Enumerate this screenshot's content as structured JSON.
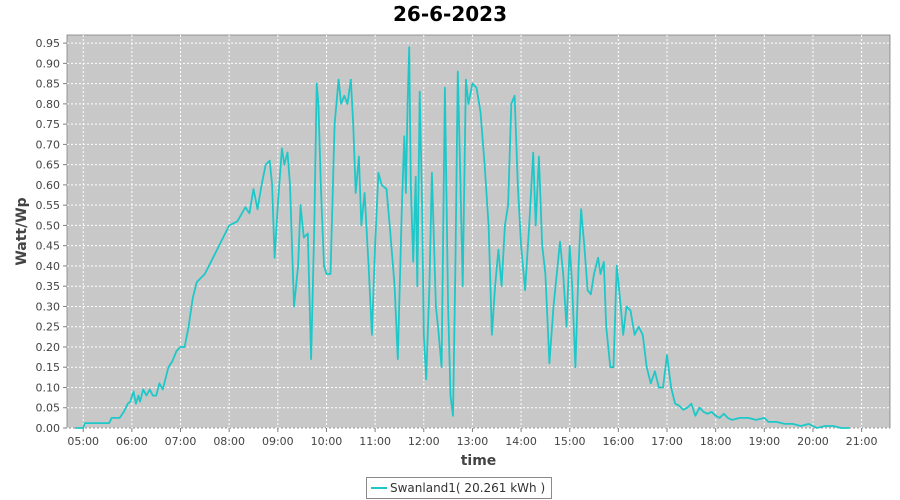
{
  "chart_data": {
    "type": "line",
    "title": "26-6-2023",
    "xlabel": "time",
    "ylabel": "Watt/Wp",
    "xlim": [
      "04:40",
      "21:35"
    ],
    "ylim": [
      0,
      0.97
    ],
    "grid": true,
    "legend_position": "bottom-center",
    "x_ticks": [
      "05:00",
      "06:00",
      "07:00",
      "08:00",
      "09:00",
      "10:00",
      "11:00",
      "12:00",
      "13:00",
      "14:00",
      "15:00",
      "16:00",
      "17:00",
      "18:00",
      "19:00",
      "20:00",
      "21:00"
    ],
    "y_ticks": [
      "0.00",
      "0.05",
      "0.10",
      "0.15",
      "0.20",
      "0.25",
      "0.30",
      "0.35",
      "0.40",
      "0.45",
      "0.50",
      "0.55",
      "0.60",
      "0.65",
      "0.70",
      "0.75",
      "0.80",
      "0.85",
      "0.90",
      "0.95"
    ],
    "series": [
      {
        "name": "Swanland1( 20.261 kWh )",
        "color": "#1ec8c8",
        "points": [
          [
            "04:50",
            0.0
          ],
          [
            "05:00",
            0.0
          ],
          [
            "05:02",
            0.012
          ],
          [
            "05:10",
            0.012
          ],
          [
            "05:20",
            0.012
          ],
          [
            "05:32",
            0.012
          ],
          [
            "05:35",
            0.025
          ],
          [
            "05:45",
            0.025
          ],
          [
            "05:50",
            0.04
          ],
          [
            "05:55",
            0.06
          ],
          [
            "05:58",
            0.065
          ],
          [
            "06:02",
            0.09
          ],
          [
            "06:05",
            0.06
          ],
          [
            "06:08",
            0.08
          ],
          [
            "06:10",
            0.065
          ],
          [
            "06:14",
            0.095
          ],
          [
            "06:18",
            0.08
          ],
          [
            "06:22",
            0.095
          ],
          [
            "06:26",
            0.08
          ],
          [
            "06:30",
            0.08
          ],
          [
            "06:34",
            0.11
          ],
          [
            "06:38",
            0.095
          ],
          [
            "06:40",
            0.11
          ],
          [
            "06:45",
            0.15
          ],
          [
            "06:50",
            0.165
          ],
          [
            "06:55",
            0.19
          ],
          [
            "07:00",
            0.2
          ],
          [
            "07:05",
            0.2
          ],
          [
            "07:10",
            0.25
          ],
          [
            "07:15",
            0.32
          ],
          [
            "07:20",
            0.36
          ],
          [
            "07:30",
            0.38
          ],
          [
            "07:40",
            0.42
          ],
          [
            "07:50",
            0.46
          ],
          [
            "08:00",
            0.5
          ],
          [
            "08:10",
            0.51
          ],
          [
            "08:20",
            0.545
          ],
          [
            "08:25",
            0.53
          ],
          [
            "08:30",
            0.59
          ],
          [
            "08:35",
            0.54
          ],
          [
            "08:40",
            0.6
          ],
          [
            "08:45",
            0.65
          ],
          [
            "08:50",
            0.66
          ],
          [
            "08:53",
            0.6
          ],
          [
            "08:56",
            0.42
          ],
          [
            "09:00",
            0.55
          ],
          [
            "09:05",
            0.69
          ],
          [
            "09:08",
            0.65
          ],
          [
            "09:12",
            0.68
          ],
          [
            "09:15",
            0.6
          ],
          [
            "09:20",
            0.3
          ],
          [
            "09:25",
            0.4
          ],
          [
            "09:28",
            0.55
          ],
          [
            "09:32",
            0.47
          ],
          [
            "09:37",
            0.48
          ],
          [
            "09:41",
            0.17
          ],
          [
            "09:45",
            0.5
          ],
          [
            "09:48",
            0.85
          ],
          [
            "09:50",
            0.8
          ],
          [
            "09:53",
            0.6
          ],
          [
            "09:57",
            0.4
          ],
          [
            "10:00",
            0.38
          ],
          [
            "10:05",
            0.38
          ],
          [
            "10:10",
            0.75
          ],
          [
            "10:15",
            0.86
          ],
          [
            "10:18",
            0.8
          ],
          [
            "10:22",
            0.82
          ],
          [
            "10:26",
            0.8
          ],
          [
            "10:30",
            0.86
          ],
          [
            "10:33",
            0.75
          ],
          [
            "10:36",
            0.58
          ],
          [
            "10:40",
            0.67
          ],
          [
            "10:43",
            0.5
          ],
          [
            "10:47",
            0.58
          ],
          [
            "10:52",
            0.4
          ],
          [
            "10:56",
            0.23
          ],
          [
            "11:00",
            0.45
          ],
          [
            "11:04",
            0.63
          ],
          [
            "11:08",
            0.6
          ],
          [
            "11:14",
            0.59
          ],
          [
            "11:18",
            0.5
          ],
          [
            "11:24",
            0.35
          ],
          [
            "11:28",
            0.17
          ],
          [
            "11:33",
            0.55
          ],
          [
            "11:36",
            0.72
          ],
          [
            "11:38",
            0.58
          ],
          [
            "11:40",
            0.8
          ],
          [
            "11:42",
            0.94
          ],
          [
            "11:44",
            0.6
          ],
          [
            "11:47",
            0.41
          ],
          [
            "11:50",
            0.62
          ],
          [
            "11:52",
            0.35
          ],
          [
            "11:55",
            0.83
          ],
          [
            "11:58",
            0.55
          ],
          [
            "12:00",
            0.23
          ],
          [
            "12:03",
            0.12
          ],
          [
            "12:07",
            0.35
          ],
          [
            "12:10",
            0.63
          ],
          [
            "12:15",
            0.3
          ],
          [
            "12:18",
            0.24
          ],
          [
            "12:22",
            0.15
          ],
          [
            "12:26",
            0.84
          ],
          [
            "12:30",
            0.3
          ],
          [
            "12:33",
            0.08
          ],
          [
            "12:36",
            0.03
          ],
          [
            "12:39",
            0.4
          ],
          [
            "12:42",
            0.88
          ],
          [
            "12:45",
            0.62
          ],
          [
            "12:48",
            0.35
          ],
          [
            "12:52",
            0.86
          ],
          [
            "12:55",
            0.8
          ],
          [
            "13:00",
            0.85
          ],
          [
            "13:05",
            0.84
          ],
          [
            "13:10",
            0.78
          ],
          [
            "13:15",
            0.65
          ],
          [
            "13:20",
            0.5
          ],
          [
            "13:24",
            0.23
          ],
          [
            "13:28",
            0.35
          ],
          [
            "13:32",
            0.44
          ],
          [
            "13:36",
            0.35
          ],
          [
            "13:40",
            0.5
          ],
          [
            "13:44",
            0.55
          ],
          [
            "13:48",
            0.8
          ],
          [
            "13:52",
            0.82
          ],
          [
            "13:56",
            0.6
          ],
          [
            "14:00",
            0.45
          ],
          [
            "14:05",
            0.34
          ],
          [
            "14:10",
            0.5
          ],
          [
            "14:15",
            0.68
          ],
          [
            "14:18",
            0.5
          ],
          [
            "14:22",
            0.67
          ],
          [
            "14:26",
            0.45
          ],
          [
            "14:30",
            0.38
          ],
          [
            "14:35",
            0.16
          ],
          [
            "14:40",
            0.3
          ],
          [
            "14:45",
            0.4
          ],
          [
            "14:48",
            0.46
          ],
          [
            "14:52",
            0.38
          ],
          [
            "14:56",
            0.25
          ],
          [
            "15:00",
            0.45
          ],
          [
            "15:03",
            0.35
          ],
          [
            "15:07",
            0.15
          ],
          [
            "15:11",
            0.4
          ],
          [
            "15:14",
            0.54
          ],
          [
            "15:18",
            0.45
          ],
          [
            "15:22",
            0.34
          ],
          [
            "15:26",
            0.33
          ],
          [
            "15:30",
            0.38
          ],
          [
            "15:35",
            0.42
          ],
          [
            "15:38",
            0.38
          ],
          [
            "15:42",
            0.41
          ],
          [
            "15:45",
            0.25
          ],
          [
            "15:50",
            0.15
          ],
          [
            "15:54",
            0.15
          ],
          [
            "15:58",
            0.4
          ],
          [
            "16:02",
            0.32
          ],
          [
            "16:06",
            0.23
          ],
          [
            "16:10",
            0.3
          ],
          [
            "16:15",
            0.29
          ],
          [
            "16:20",
            0.23
          ],
          [
            "16:25",
            0.25
          ],
          [
            "16:30",
            0.23
          ],
          [
            "16:35",
            0.15
          ],
          [
            "16:40",
            0.11
          ],
          [
            "16:45",
            0.14
          ],
          [
            "16:50",
            0.1
          ],
          [
            "16:55",
            0.1
          ],
          [
            "17:00",
            0.18
          ],
          [
            "17:05",
            0.1
          ],
          [
            "17:10",
            0.06
          ],
          [
            "17:15",
            0.055
          ],
          [
            "17:20",
            0.045
          ],
          [
            "17:25",
            0.05
          ],
          [
            "17:30",
            0.06
          ],
          [
            "17:35",
            0.03
          ],
          [
            "17:40",
            0.05
          ],
          [
            "17:45",
            0.04
          ],
          [
            "17:50",
            0.035
          ],
          [
            "17:55",
            0.04
          ],
          [
            "18:00",
            0.03
          ],
          [
            "18:05",
            0.025
          ],
          [
            "18:10",
            0.035
          ],
          [
            "18:15",
            0.025
          ],
          [
            "18:20",
            0.02
          ],
          [
            "18:30",
            0.025
          ],
          [
            "18:40",
            0.025
          ],
          [
            "18:50",
            0.02
          ],
          [
            "19:00",
            0.025
          ],
          [
            "19:05",
            0.015
          ],
          [
            "19:15",
            0.015
          ],
          [
            "19:25",
            0.01
          ],
          [
            "19:35",
            0.01
          ],
          [
            "19:45",
            0.005
          ],
          [
            "19:55",
            0.01
          ],
          [
            "20:05",
            0.0
          ],
          [
            "20:15",
            0.005
          ],
          [
            "20:25",
            0.005
          ],
          [
            "20:35",
            0.0
          ],
          [
            "20:45",
            0.0
          ]
        ]
      }
    ]
  }
}
